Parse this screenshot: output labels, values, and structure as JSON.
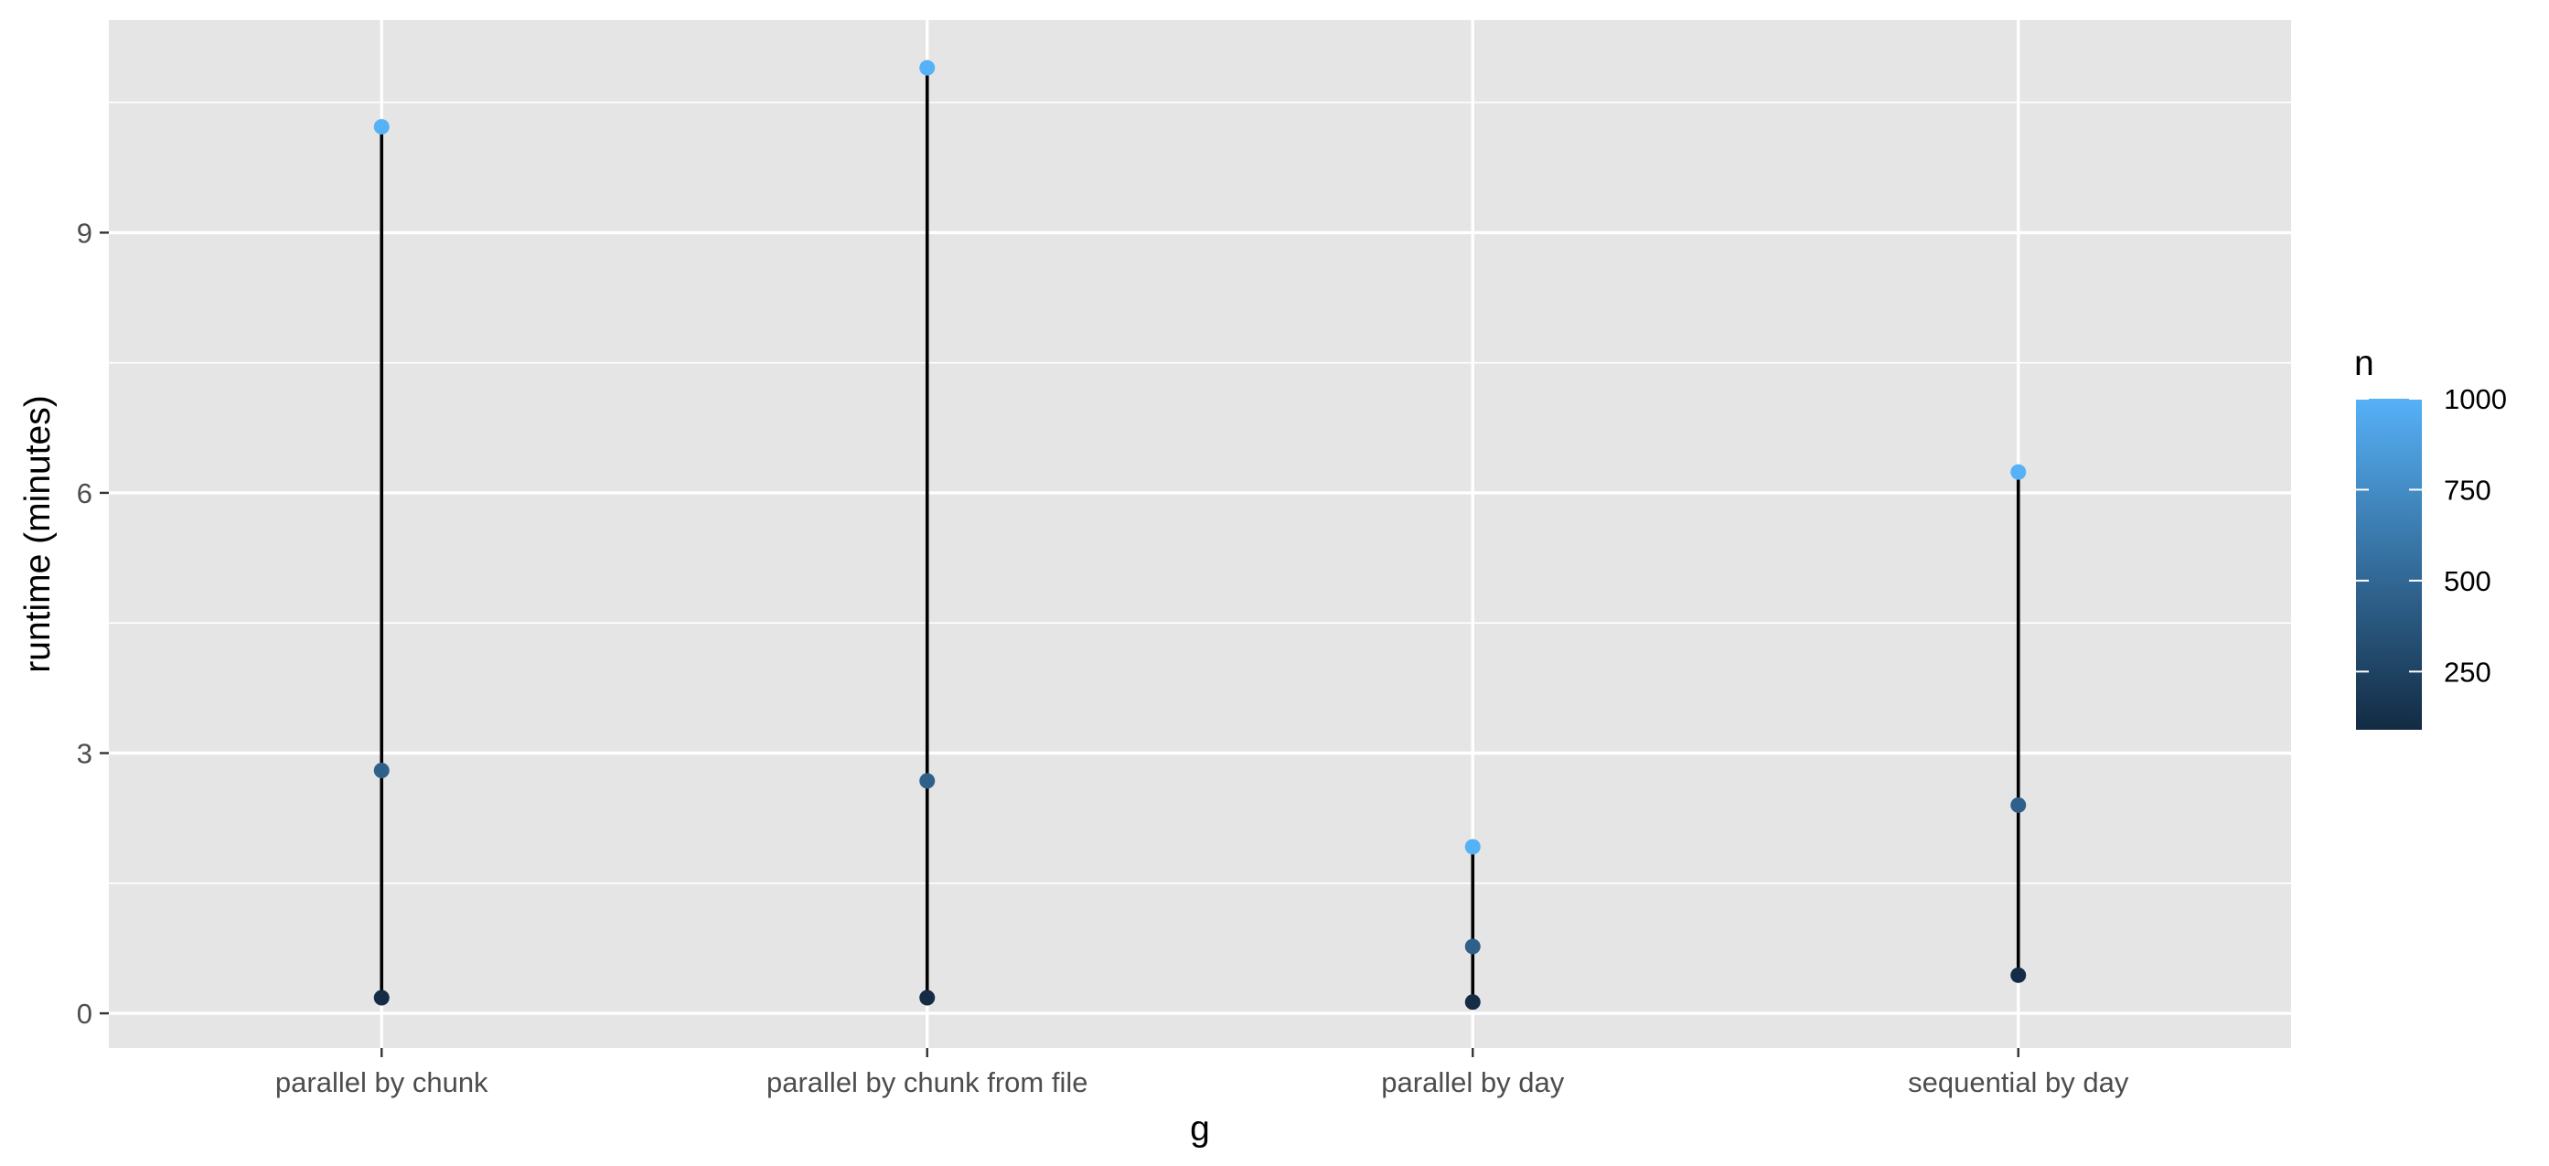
{
  "chart_data": {
    "type": "scatter",
    "title": "",
    "xlabel": "g",
    "ylabel": "runtime (minutes)",
    "categories": [
      "parallel by chunk",
      "parallel by chunk from file",
      "parallel by day",
      "sequential by day"
    ],
    "y_ticks": [
      0,
      3,
      6,
      9
    ],
    "y_tick_labels": [
      "0",
      "3",
      "6",
      "9"
    ],
    "ylim": [
      -0.4,
      11.45
    ],
    "grid": true,
    "points": [
      {
        "category": "parallel by chunk",
        "y": 0.18,
        "n": 100
      },
      {
        "category": "parallel by chunk",
        "y": 2.8,
        "n": 450
      },
      {
        "category": "parallel by chunk",
        "y": 10.22,
        "n": 1000
      },
      {
        "category": "parallel by chunk from file",
        "y": 0.18,
        "n": 100
      },
      {
        "category": "parallel by chunk from file",
        "y": 2.68,
        "n": 450
      },
      {
        "category": "parallel by chunk from file",
        "y": 10.9,
        "n": 1000
      },
      {
        "category": "parallel by day",
        "y": 0.13,
        "n": 100
      },
      {
        "category": "parallel by day",
        "y": 0.77,
        "n": 450
      },
      {
        "category": "parallel by day",
        "y": 1.92,
        "n": 1000
      },
      {
        "category": "sequential by day",
        "y": 0.44,
        "n": 100
      },
      {
        "category": "sequential by day",
        "y": 2.4,
        "n": 450
      },
      {
        "category": "sequential by day",
        "y": 6.24,
        "n": 1000
      }
    ],
    "ranges": [
      {
        "category": "parallel by chunk",
        "ymin": 0.18,
        "ymax": 10.22
      },
      {
        "category": "parallel by chunk from file",
        "ymin": 0.18,
        "ymax": 10.9
      },
      {
        "category": "parallel by day",
        "ymin": 0.13,
        "ymax": 1.92
      },
      {
        "category": "sequential by day",
        "ymin": 0.44,
        "ymax": 6.24
      }
    ],
    "legend": {
      "title": "n",
      "placement": "right",
      "min": 90,
      "max": 1000,
      "ticks": [
        250,
        500,
        750,
        1000
      ],
      "tick_labels": [
        "250",
        "500",
        "750",
        "1000"
      ],
      "color_low": "#132b43",
      "color_high": "#56b1f7"
    },
    "colors": {
      "panel_background": "#e5e5e5",
      "grid": "#ffffff",
      "range_line": "#000000"
    }
  }
}
